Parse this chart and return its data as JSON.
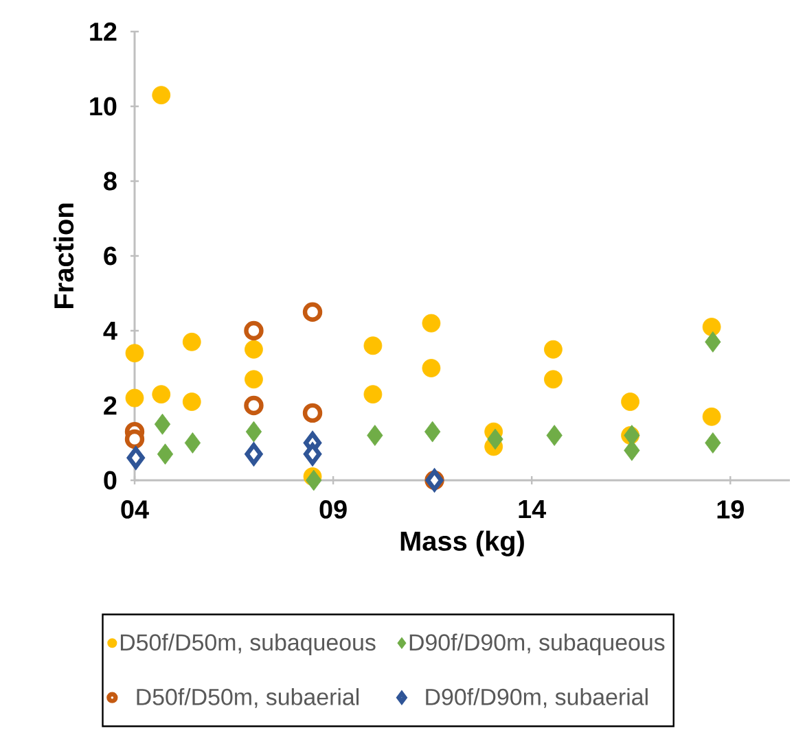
{
  "chart_data": {
    "type": "scatter",
    "xlabel": "Mass (kg)",
    "ylabel": "Fraction",
    "xlim": [
      4,
      20.5
    ],
    "ylim": [
      0,
      12
    ],
    "xticks": [
      {
        "value": 4,
        "label": "04"
      },
      {
        "value": 9,
        "label": "09"
      },
      {
        "value": 14,
        "label": "14"
      },
      {
        "value": 19,
        "label": "19"
      }
    ],
    "yticks": [
      0,
      2,
      4,
      6,
      8,
      10,
      12
    ],
    "grid": false,
    "legend": "bottom",
    "series": [
      {
        "name": "D50f/D50m, subaqueous",
        "color": "#ffc000",
        "marker": "circle",
        "x": [
          4.0,
          4.0,
          4.67,
          4.67,
          5.44,
          5.44,
          7.0,
          7.0,
          8.48,
          10.0,
          10.0,
          11.47,
          11.47,
          13.04,
          13.04,
          14.54,
          14.54,
          16.48,
          16.48,
          18.53,
          18.53
        ],
        "values": [
          3.4,
          2.2,
          10.3,
          2.3,
          3.7,
          2.1,
          3.5,
          2.7,
          0.1,
          3.6,
          2.3,
          4.2,
          3.0,
          1.3,
          0.9,
          3.5,
          2.7,
          2.1,
          1.2,
          4.1,
          1.7
        ]
      },
      {
        "name": "D90f/D90m, subaqueous",
        "color": "#70ad47",
        "marker": "diamond",
        "x": [
          4.7,
          4.77,
          5.46,
          7.0,
          8.51,
          10.05,
          11.5,
          13.08,
          14.57,
          16.52,
          16.52,
          18.56,
          18.56
        ],
        "values": [
          1.5,
          0.7,
          1.0,
          1.3,
          0.0,
          1.2,
          1.3,
          1.1,
          1.2,
          1.2,
          0.8,
          3.7,
          1.0
        ]
      },
      {
        "name": "D50f/D50m, subaerial",
        "color": "#c55a11",
        "marker": "circle",
        "x": [
          4.0,
          4.0,
          7.0,
          7.0,
          8.48,
          8.48,
          11.55
        ],
        "values": [
          1.3,
          1.1,
          4.0,
          2.0,
          4.5,
          1.8,
          0.0
        ]
      },
      {
        "name": "D90f/D90m, subaerial",
        "color": "#2f5597",
        "marker": "diamond",
        "x": [
          4.03,
          7.0,
          8.48,
          8.48,
          11.55
        ],
        "values": [
          0.6,
          0.7,
          1.0,
          0.7,
          0.0
        ]
      }
    ]
  }
}
